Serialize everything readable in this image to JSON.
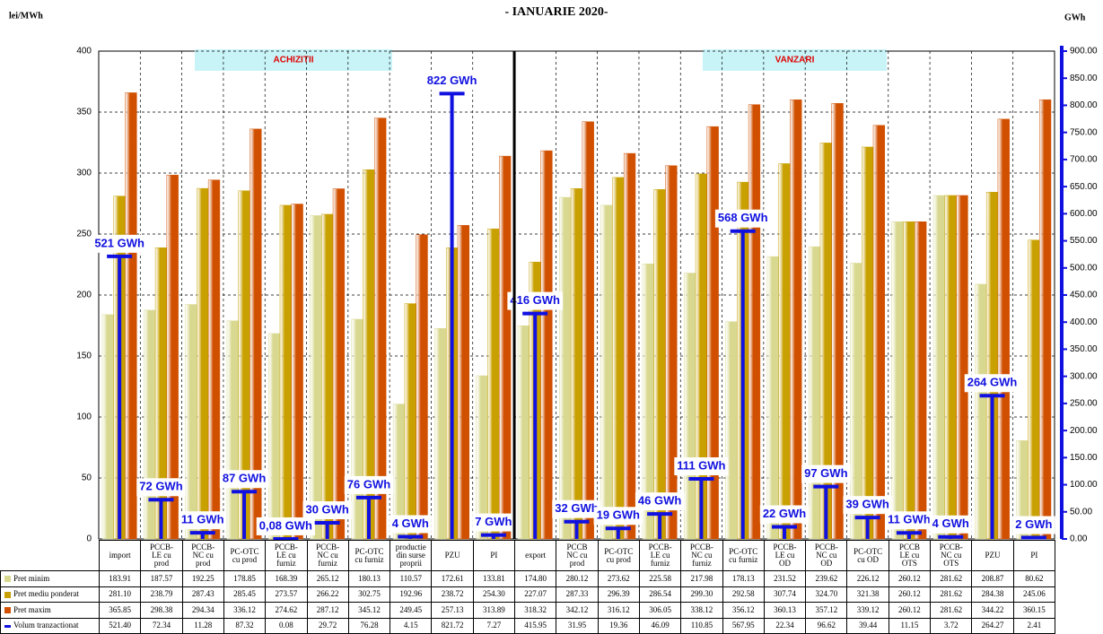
{
  "chart_data": {
    "type": "bar_volume",
    "title": "- IANUARIE 2020-",
    "y_label": "lei/MWh",
    "y2_label": "GWh",
    "annotations": [
      "ACHIZITII",
      "VANZARI"
    ],
    "categories": [
      "import",
      "PCCB-\nLE cu\nprod",
      "PCCB-\nNC cu\nprod",
      "PC-OTC\ncu prod",
      "PCCB-\nLE cu\nfurniz",
      "PCCB-\nNC cu\nfurniz",
      "PC-OTC\ncu furniz",
      "productie\ndin surse\nproprii",
      "PZU",
      "PI",
      "export",
      "PCCB\nNC cu\nprod",
      "PC-OTC\ncu prod",
      "PCCB-\nLE cu\nfurniz",
      "PCCB-\nNC cu\nfurniz",
      "PC-OTC\ncu furniz",
      "PCCB-\nLE cu\nOD",
      "PCCB-\nNC cu\nOD",
      "PC-OTC\ncu OD",
      "PCCB\nLE cu\nOTS",
      "PCCB-\nNC cu\nOTS",
      "PZU",
      "PI"
    ],
    "series": [
      {
        "name": "Pret minim",
        "color": "#d8d890",
        "values": [
          183.91,
          187.57,
          192.25,
          178.85,
          168.39,
          265.12,
          180.13,
          110.57,
          172.61,
          133.81,
          174.8,
          280.12,
          273.62,
          225.58,
          217.98,
          178.13,
          231.52,
          239.62,
          226.12,
          260.12,
          281.62,
          208.87,
          80.62
        ],
        "table_labels": [
          "183.91",
          "187.57",
          "192.25",
          "178.85",
          "168.39",
          "265.12",
          "180.13",
          "110.57",
          "172.61",
          "133.81",
          "174.80",
          "280.12",
          "273.62",
          "225.58",
          "217.98",
          "178.13",
          "231.52",
          "239.62",
          "226.12",
          "260.12",
          "281.62",
          "208.87",
          "80.62"
        ]
      },
      {
        "name": "Pret mediu ponderat",
        "color": "#c8a000",
        "values": [
          281.1,
          238.79,
          287.43,
          285.45,
          273.57,
          266.22,
          302.75,
          192.96,
          238.72,
          254.3,
          227.07,
          287.33,
          296.39,
          286.54,
          299.3,
          292.58,
          307.74,
          324.7,
          321.38,
          260.12,
          281.62,
          284.38,
          245.06
        ],
        "table_labels": [
          "281.10",
          "238.79",
          "287.43",
          "285.45",
          "273.57",
          "266.22",
          "302.75",
          "192.96",
          "238.72",
          "254.30",
          "227.07",
          "287.33",
          "296.39",
          "286.54",
          "299.30",
          "292.58",
          "307.74",
          "324.70",
          "321.38",
          "260.12",
          "281.62",
          "284.38",
          "245.06"
        ]
      },
      {
        "name": "Pret maxim",
        "color": "#d05000",
        "values": [
          365.85,
          298.38,
          294.34,
          336.12,
          274.62,
          287.12,
          345.12,
          249.45,
          257.13,
          313.89,
          318.32,
          342.12,
          316.12,
          306.05,
          338.12,
          356.12,
          360.13,
          357.12,
          339.12,
          260.12,
          281.62,
          344.22,
          360.15
        ],
        "table_labels": [
          "365.85",
          "298.38",
          "294.34",
          "336.12",
          "274.62",
          "287.12",
          "345.12",
          "249.45",
          "257.13",
          "313.89",
          "318.32",
          "342.12",
          "316.12",
          "306.05",
          "338.12",
          "356.12",
          "360.13",
          "357.12",
          "339.12",
          "260.12",
          "281.62",
          "344.22",
          "360.15"
        ]
      },
      {
        "name": "Volum tranzactionat",
        "color": "#1010e0",
        "axis": "y2",
        "values": [
          521.4,
          72.34,
          11.28,
          87.32,
          0.08,
          29.72,
          76.28,
          4.15,
          821.72,
          7.27,
          415.95,
          31.95,
          19.36,
          46.09,
          110.85,
          567.95,
          22.34,
          96.62,
          39.44,
          11.15,
          3.72,
          264.27,
          2.41
        ],
        "value_labels": [
          "521 GWh",
          "72 GWh",
          "11 GWh",
          "87 GWh",
          "0,08 GWh",
          "30 GWh",
          "76 GWh",
          "4 GWh",
          "822 GWh",
          "7 GWh",
          "416 GWh",
          "32 GWh",
          "19 GWh",
          "46 GWh",
          "111 GWh",
          "568 GWh",
          "22 GWh",
          "97 GWh",
          "39 GWh",
          "11 GWh",
          "4 GWh",
          "264 GWh",
          "2 GWh"
        ],
        "table_labels": [
          "521.40",
          "72.34",
          "11.28",
          "87.32",
          "0.08",
          "29.72",
          "76.28",
          "4.15",
          "821.72",
          "7.27",
          "415.95",
          "31.95",
          "19.36",
          "46.09",
          "110.85",
          "567.95",
          "22.34",
          "96.62",
          "39.44",
          "11.15",
          "3.72",
          "264.27",
          "2.41"
        ]
      }
    ],
    "ylim": [
      0,
      400
    ],
    "yticks": [
      0,
      50,
      100,
      150,
      200,
      250,
      300,
      350,
      400
    ],
    "y2lim": [
      0,
      900
    ],
    "y2ticks": [
      {
        "value": 0,
        "label": "0.00"
      },
      {
        "value": 50,
        "label": "50.00"
      },
      {
        "value": 100,
        "label": "100.00"
      },
      {
        "value": 150,
        "label": "150.00"
      },
      {
        "value": 200,
        "label": "200.00"
      },
      {
        "value": 250,
        "label": "250.00"
      },
      {
        "value": 300,
        "label": "300.00"
      },
      {
        "value": 350,
        "label": "350.00"
      },
      {
        "value": 400,
        "label": "400.00"
      },
      {
        "value": 450,
        "label": "450.00"
      },
      {
        "value": 500,
        "label": "500.00"
      },
      {
        "value": 550,
        "label": "550.00"
      },
      {
        "value": 600,
        "label": "600.00"
      },
      {
        "value": 650,
        "label": "650.00"
      },
      {
        "value": 700,
        "label": "700.00"
      },
      {
        "value": 750,
        "label": "750.00"
      },
      {
        "value": 800,
        "label": "800.00"
      },
      {
        "value": 850,
        "label": "850.00"
      },
      {
        "value": 900,
        "label": "900.00"
      }
    ],
    "grid": true,
    "divider_after": 10
  }
}
